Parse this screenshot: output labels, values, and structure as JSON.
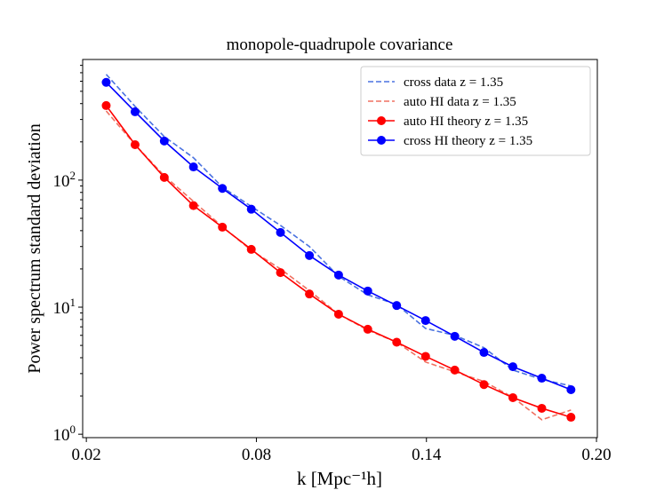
{
  "chart_data": {
    "type": "line",
    "title": "monopole-quadrupole covariance",
    "xlabel": "k [Mpc⁻¹h]",
    "ylabel": "Power spectrum standard deviation",
    "x": [
      0.027,
      0.0372,
      0.0475,
      0.0578,
      0.068,
      0.0782,
      0.0885,
      0.0987,
      0.109,
      0.1193,
      0.1295,
      0.1397,
      0.15,
      0.1603,
      0.1705,
      0.1807,
      0.191
    ],
    "series": [
      {
        "name": "cross data z = 1.35",
        "color": "#4a72e0",
        "style": "dashed",
        "markers": false,
        "values": [
          680,
          380,
          220,
          150,
          88,
          62,
          44,
          30,
          17.5,
          12.5,
          10.5,
          6.8,
          6.0,
          4.8,
          3.2,
          2.7,
          2.4
        ]
      },
      {
        "name": "auto HI data z = 1.35",
        "color": "#f07060",
        "style": "dashed",
        "markers": false,
        "values": [
          350,
          190,
          108,
          68,
          43,
          28,
          20,
          13.5,
          8.8,
          6.6,
          5.3,
          3.7,
          3.1,
          2.6,
          1.95,
          1.3,
          1.55
        ]
      },
      {
        "name": "auto HI theory z = 1.35",
        "color": "#ff0000",
        "style": "solid",
        "markers": true,
        "values": [
          386,
          190,
          105,
          63,
          42.6,
          28.5,
          18.7,
          12.7,
          8.8,
          6.7,
          5.3,
          4.1,
          3.2,
          2.46,
          1.94,
          1.6,
          1.36
        ]
      },
      {
        "name": "cross HI theory z = 1.35",
        "color": "#0000ff",
        "style": "solid",
        "markers": true,
        "values": [
          588,
          345,
          203,
          127,
          86,
          59,
          38.7,
          25.5,
          17.9,
          13.4,
          10.3,
          7.85,
          5.9,
          4.4,
          3.4,
          2.76,
          2.24
        ]
      }
    ],
    "xlim": [
      0.0187,
      0.2003
    ],
    "xticks": [
      0.02,
      0.08,
      0.14,
      {
        "value": 0.2,
        "label": "0.20"
      }
    ],
    "ylim": [
      0.94,
      890
    ],
    "yscale": "log",
    "yticks": [
      {
        "value": 1,
        "label": "10^0"
      },
      {
        "value": 10,
        "label": "10^1"
      },
      {
        "value": 100,
        "label": "10^2"
      }
    ],
    "legend": "upper right"
  }
}
